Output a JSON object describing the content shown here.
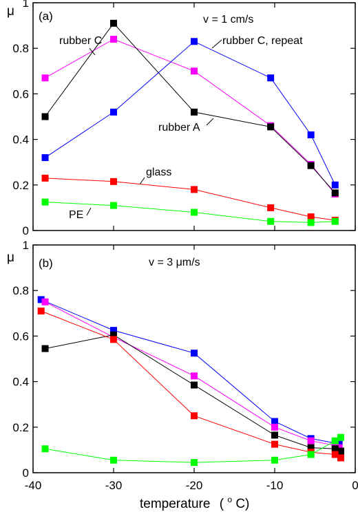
{
  "figure": {
    "xlabel_main": "temperature",
    "xlabel_unit_open": "(",
    "xlabel_unit_sup": "o",
    "xlabel_unit_rest": "C)"
  },
  "chart_data": [
    {
      "type": "line",
      "panel": "(a)",
      "ylabel": "μ",
      "speed_label": "v = 1 cm/s",
      "xlim": [
        -40,
        0
      ],
      "ylim": [
        0,
        1
      ],
      "xticks": [
        -40,
        -30,
        -20,
        -10,
        0
      ],
      "yticks": [
        0,
        0.2,
        0.4,
        0.6,
        0.8,
        1
      ],
      "ytick_labels": [
        "0",
        "0.2",
        "0.4",
        "0.6",
        "0.8",
        "1"
      ],
      "grid": false,
      "series": [
        {
          "name": "rubber C",
          "color": "#ff00ff",
          "x": [
            -38.5,
            -30,
            -20,
            -10.5,
            -5.5,
            -2.5
          ],
          "y": [
            0.67,
            0.84,
            0.7,
            0.46,
            0.29,
            0.16
          ]
        },
        {
          "name": "rubber A",
          "color": "#000000",
          "x": [
            -38.5,
            -30,
            -20,
            -10.5,
            -5.5,
            -2.5
          ],
          "y": [
            0.5,
            0.91,
            0.52,
            0.455,
            0.285,
            0.165
          ]
        },
        {
          "name": "rubber C, repeat",
          "color": "#0000ff",
          "x": [
            -38.5,
            -30,
            -20,
            -10.5,
            -5.5,
            -2.5
          ],
          "y": [
            0.32,
            0.52,
            0.83,
            0.67,
            0.42,
            0.2
          ]
        },
        {
          "name": "glass",
          "color": "#ff0000",
          "x": [
            -38.5,
            -30,
            -20,
            -10.5,
            -5.5,
            -2.5
          ],
          "y": [
            0.23,
            0.215,
            0.18,
            0.1,
            0.06,
            0.045
          ]
        },
        {
          "name": "PE",
          "color": "#00ff00",
          "x": [
            -38.5,
            -30,
            -20,
            -10.5,
            -5.5,
            -2.5
          ],
          "y": [
            0.125,
            0.11,
            0.08,
            0.04,
            0.035,
            0.04
          ]
        }
      ],
      "annotations": [
        {
          "text": "rubber C",
          "series": "rubber C"
        },
        {
          "text": "rubber C, repeat",
          "series": "rubber C, repeat"
        },
        {
          "text": "rubber A",
          "series": "rubber A"
        },
        {
          "text": "glass",
          "series": "glass"
        },
        {
          "text": "PE",
          "series": "PE"
        }
      ]
    },
    {
      "type": "line",
      "panel": "(b)",
      "ylabel": "μ",
      "speed_label": "v = 3 μm/s",
      "xlim": [
        -40,
        0
      ],
      "ylim": [
        0,
        1
      ],
      "xticks": [
        -40,
        -30,
        -20,
        -10,
        0
      ],
      "xtick_labels": [
        "-40",
        "-30",
        "-20",
        "-10",
        "0"
      ],
      "yticks": [
        0,
        0.2,
        0.4,
        0.6,
        0.8,
        1
      ],
      "ytick_labels": [
        "0",
        "0.2",
        "0.4",
        "0.6",
        "0.8",
        "1"
      ],
      "grid": false,
      "series": [
        {
          "name": "rubber C, repeat",
          "color": "#0000ff",
          "x": [
            -39,
            -30,
            -20,
            -10,
            -5.5,
            -2.5,
            -2
          ],
          "y": [
            0.76,
            0.625,
            0.525,
            0.225,
            0.15,
            0.13,
            0.125
          ]
        },
        {
          "name": "rubber C",
          "color": "#ff00ff",
          "x": [
            -38.5,
            -30,
            -20,
            -10,
            -5.5,
            -2.5,
            -2
          ],
          "y": [
            0.75,
            0.595,
            0.425,
            0.2,
            0.14,
            0.12,
            0.11
          ]
        },
        {
          "name": "rubber A",
          "color": "#000000",
          "x": [
            -38.5,
            -30,
            -20,
            -10,
            -5.5,
            -2.5,
            -1.8
          ],
          "y": [
            0.545,
            0.605,
            0.385,
            0.165,
            0.11,
            0.105,
            0.095
          ]
        },
        {
          "name": "glass",
          "color": "#ff0000",
          "x": [
            -39,
            -30,
            -20,
            -10,
            -5.5,
            -2.5,
            -1.8
          ],
          "y": [
            0.71,
            0.585,
            0.25,
            0.125,
            0.09,
            0.08,
            0.065
          ]
        },
        {
          "name": "PE",
          "color": "#00ff00",
          "x": [
            -38.5,
            -30,
            -20,
            -10,
            -5.5,
            -2.5,
            -1.8
          ],
          "y": [
            0.105,
            0.055,
            0.045,
            0.055,
            0.08,
            0.14,
            0.155
          ]
        }
      ],
      "annotations": []
    }
  ]
}
